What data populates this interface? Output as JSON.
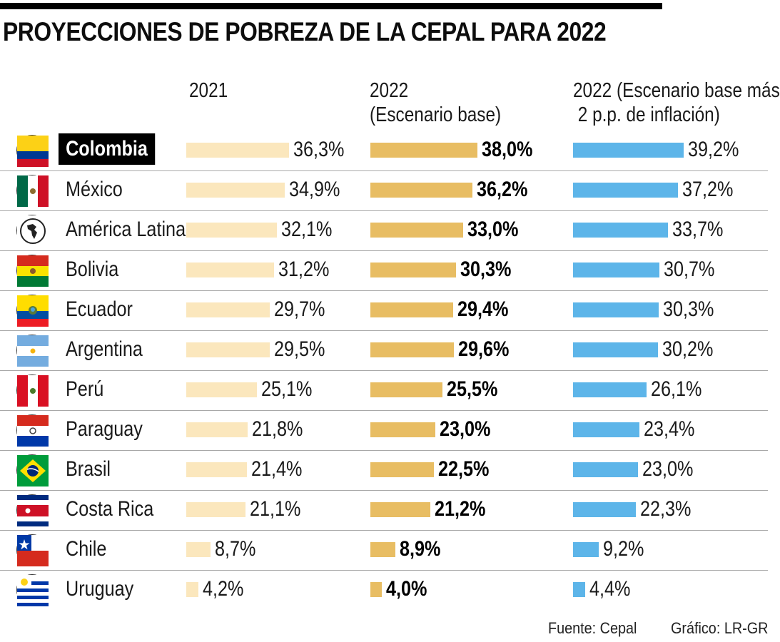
{
  "title": "PROYECCIONES DE POBREZA DE LA CEPAL PARA 2022",
  "columns": [
    {
      "label": "2021",
      "color": "#fbe7bd"
    },
    {
      "label": "2022\n(Escenario base)",
      "color": "#e8bd63"
    },
    {
      "label": "2022 (Escenario base más\n 2 p.p. de inflación)",
      "color": "#5db5e9"
    }
  ],
  "chart_data": {
    "type": "bar",
    "unit": "%",
    "categories": [
      "Colombia",
      "México",
      "América Latina",
      "Bolivia",
      "Ecuador",
      "Argentina",
      "Perú",
      "Paraguay",
      "Brasil",
      "Costa Rica",
      "Chile",
      "Uruguay"
    ],
    "highlight": "Colombia",
    "series": [
      {
        "name": "2021",
        "values": [
          36.3,
          34.9,
          32.1,
          31.2,
          29.7,
          29.5,
          25.1,
          21.8,
          21.4,
          21.1,
          8.7,
          4.2
        ],
        "labels": [
          "36,3%",
          "34,9%",
          "32,1%",
          "31,2%",
          "29,7%",
          "29,5%",
          "25,1%",
          "21,8%",
          "21,4%",
          "21,1%",
          "8,7%",
          "4,2%"
        ]
      },
      {
        "name": "2022 (Escenario base)",
        "values": [
          38.0,
          36.2,
          33.0,
          30.3,
          29.4,
          29.6,
          25.5,
          23.0,
          22.5,
          21.2,
          8.9,
          4.0
        ],
        "labels": [
          "38,0%",
          "36,2%",
          "33,0%",
          "30,3%",
          "29,4%",
          "29,6%",
          "25,5%",
          "23,0%",
          "22,5%",
          "21,2%",
          "8,9%",
          "4,0%"
        ]
      },
      {
        "name": "2022 (Escenario base más 2 p.p. de inflación)",
        "values": [
          39.2,
          37.2,
          33.7,
          30.7,
          30.3,
          30.2,
          26.1,
          23.4,
          23.0,
          22.3,
          9.2,
          4.4
        ],
        "labels": [
          "39,2%",
          "37,2%",
          "33,7%",
          "30,7%",
          "30,3%",
          "30,2%",
          "26,1%",
          "23,4%",
          "23,0%",
          "22,3%",
          "9,2%",
          "4,4%"
        ]
      }
    ]
  },
  "flags": [
    "colombia-flag-icon",
    "mexico-flag-icon",
    "latin-america-icon",
    "bolivia-flag-icon",
    "ecuador-flag-icon",
    "argentina-flag-icon",
    "peru-flag-icon",
    "paraguay-flag-icon",
    "brazil-flag-icon",
    "costa-rica-flag-icon",
    "chile-flag-icon",
    "uruguay-flag-icon"
  ],
  "footer": {
    "source": "Fuente: Cepal",
    "credit": "Gráfico: LR-GR"
  }
}
